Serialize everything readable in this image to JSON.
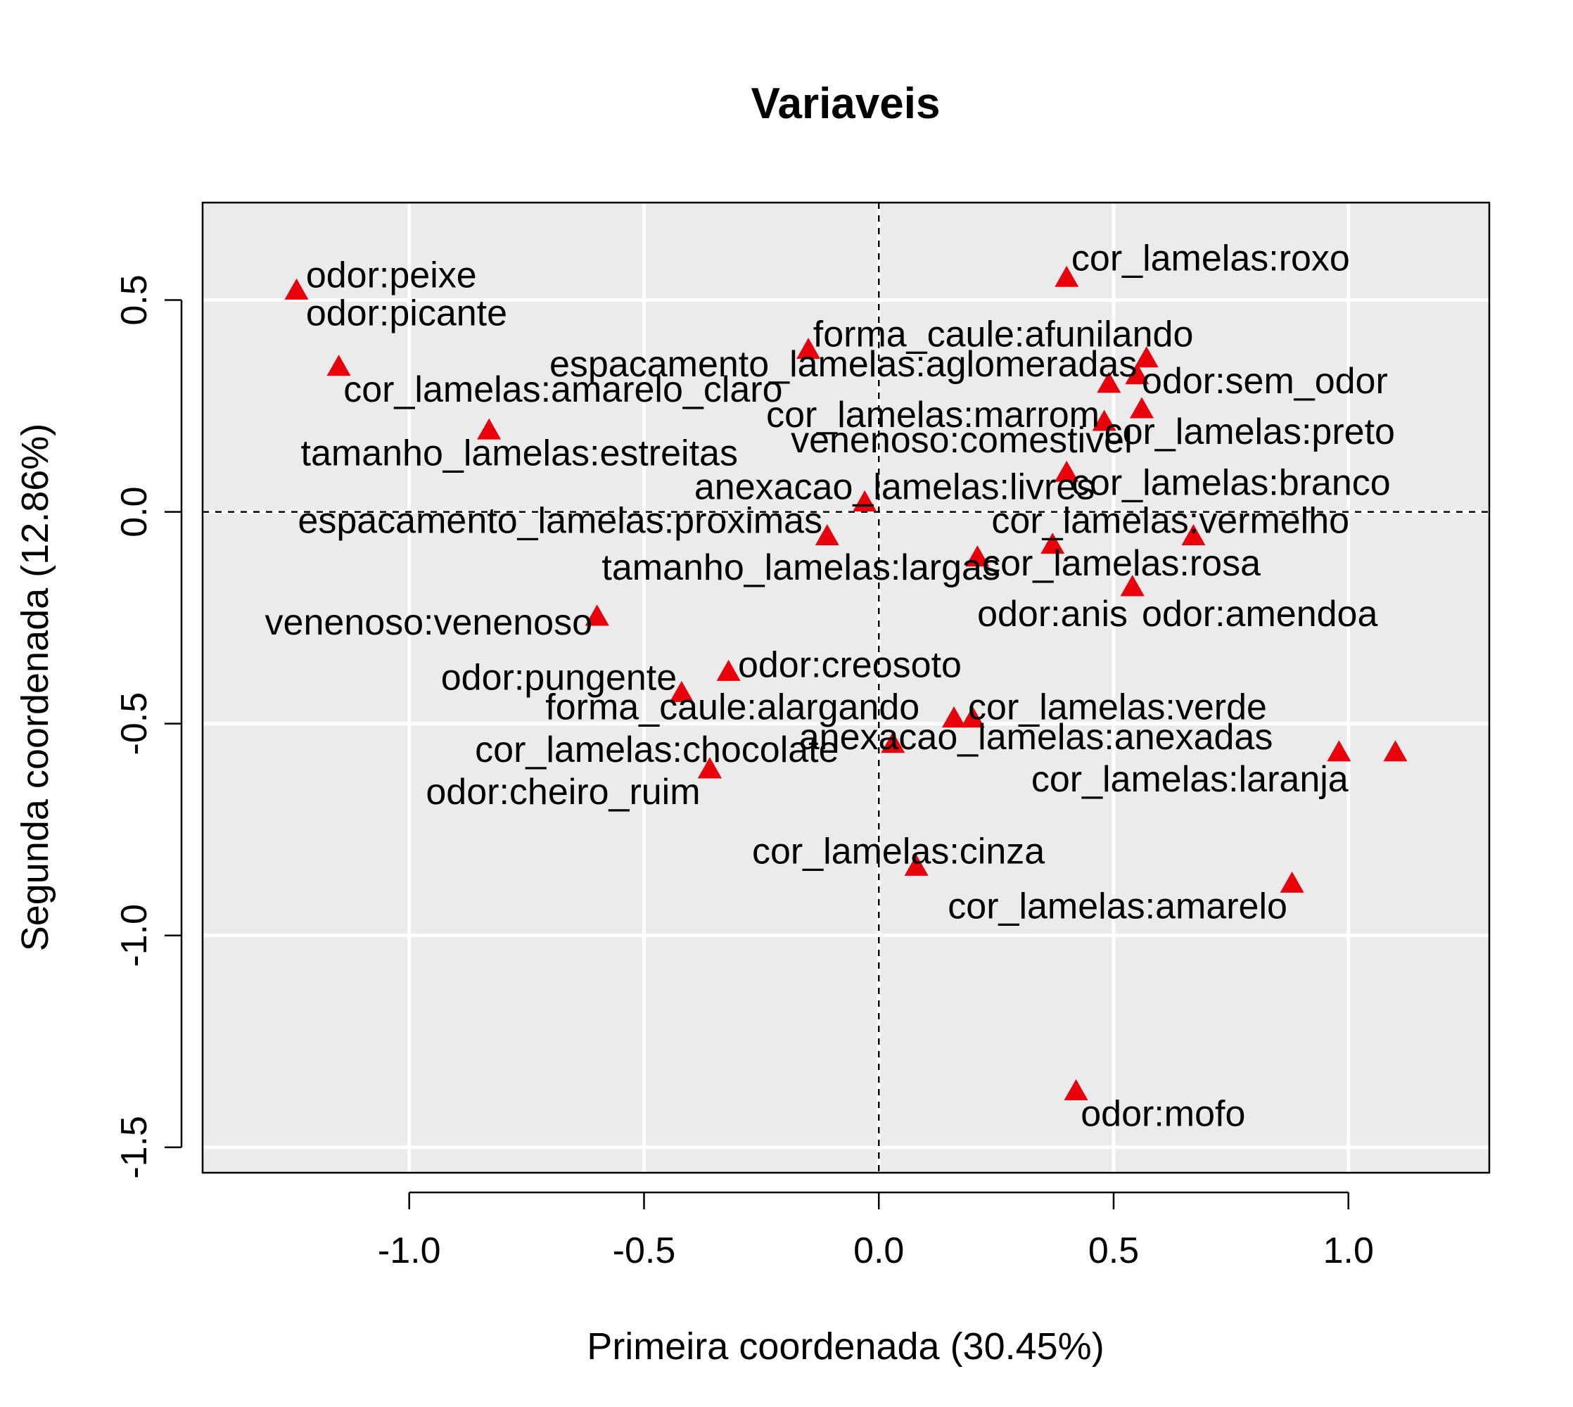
{
  "chart_data": {
    "type": "scatter",
    "title": "Variaveis",
    "xlabel": "Primeira coordenada (30.45%)",
    "ylabel": "Segunda coordenada (12.86%)",
    "xlim": [
      -1.44,
      1.3
    ],
    "ylim": [
      -1.56,
      0.73
    ],
    "xticks": [
      -1.0,
      -0.5,
      0.0,
      0.5,
      1.0
    ],
    "xtick_labels": [
      "-1.0",
      "-0.5",
      "0.0",
      "0.5",
      "1.0"
    ],
    "yticks": [
      -1.5,
      -1.0,
      -0.5,
      0.0,
      0.5
    ],
    "ytick_labels": [
      "-1.5",
      "-1.0",
      "-0.5",
      "0.0",
      "0.5"
    ],
    "grid": true,
    "reference_lines": {
      "x": 0,
      "y": 0
    },
    "marker": "triangle",
    "marker_color": "#e8000b",
    "panel_color": "#ebebeb",
    "points": [
      {
        "label": "odor:peixe",
        "x": -1.24,
        "y": 0.52,
        "label_x": -1.22,
        "label_y": 0.56,
        "anchor": "start"
      },
      {
        "label": "odor:picante",
        "x": -1.15,
        "y": 0.34,
        "label_x": -1.22,
        "label_y": 0.47,
        "anchor": "start"
      },
      {
        "label": "cor_lamelas:amarelo_claro",
        "x": -0.83,
        "y": 0.19,
        "label_x": -1.14,
        "label_y": 0.29,
        "anchor": "start"
      },
      {
        "label": "tamanho_lamelas:estreitas",
        "x": -0.6,
        "y": -0.25,
        "label_x": -0.3,
        "label_y": 0.14,
        "anchor": "end"
      },
      {
        "label": "espacamento_lamelas:aglomeradas",
        "x": -0.15,
        "y": 0.38,
        "label_x": 0.55,
        "label_y": 0.35,
        "anchor": "end"
      },
      {
        "label": "forma_caule:afunilando",
        "x": 0.57,
        "y": 0.36,
        "label_x": -0.14,
        "label_y": 0.42,
        "anchor": "start"
      },
      {
        "label": "cor_lamelas:roxo",
        "x": 0.4,
        "y": 0.55,
        "label_x": 0.41,
        "label_y": 0.6,
        "anchor": "start"
      },
      {
        "label": "odor:sem_odor",
        "x": 0.55,
        "y": 0.32,
        "label_x": 0.56,
        "label_y": 0.31,
        "anchor": "start"
      },
      {
        "label": "cor_lamelas:marrom",
        "x": 0.49,
        "y": 0.3,
        "label_x": 0.47,
        "label_y": 0.23,
        "anchor": "end"
      },
      {
        "label": "cor_lamelas:preto",
        "x": 0.56,
        "y": 0.24,
        "label_x": 0.48,
        "label_y": 0.19,
        "anchor": "start"
      },
      {
        "label": "venenoso:comestivel",
        "x": 0.48,
        "y": 0.21,
        "label_x": 0.54,
        "label_y": 0.17,
        "anchor": "end"
      },
      {
        "label": "cor_lamelas:branco",
        "x": 0.4,
        "y": 0.09,
        "label_x": 0.41,
        "label_y": 0.07,
        "anchor": "start"
      },
      {
        "label": "anexacao_lamelas:livres",
        "x": -0.03,
        "y": 0.02,
        "label_x": 0.46,
        "label_y": 0.06,
        "anchor": "end"
      },
      {
        "label": "espacamento_lamelas:proximas",
        "x": -0.11,
        "y": -0.06,
        "label_x": -0.12,
        "label_y": -0.02,
        "anchor": "end"
      },
      {
        "label": "cor_lamelas:vermelho",
        "x": 0.67,
        "y": -0.06,
        "label_x": 0.24,
        "label_y": -0.02,
        "anchor": "start"
      },
      {
        "label": "cor_lamelas:rosa",
        "x": 0.37,
        "y": -0.08,
        "label_x": 0.22,
        "label_y": -0.12,
        "anchor": "start"
      },
      {
        "label": "tamanho_lamelas:largas",
        "x": 0.21,
        "y": -0.11,
        "label_x": -0.59,
        "label_y": -0.13,
        "anchor": "start"
      },
      {
        "label": "odor:amendoa",
        "x": 0.54,
        "y": -0.18,
        "label_x": 0.56,
        "label_y": -0.24,
        "anchor": "start"
      },
      {
        "label": "odor:anis",
        "x": 0.54,
        "y": -0.18,
        "label_x": 0.53,
        "label_y": -0.24,
        "anchor": "end"
      },
      {
        "label": "venenoso:venenoso",
        "x": -0.6,
        "y": -0.25,
        "label_x": -0.61,
        "label_y": -0.26,
        "anchor": "end"
      },
      {
        "label": "odor:creosoto",
        "x": -0.32,
        "y": -0.38,
        "label_x": -0.3,
        "label_y": -0.36,
        "anchor": "start"
      },
      {
        "label": "odor:pungente",
        "x": -0.42,
        "y": -0.43,
        "label_x": -0.43,
        "label_y": -0.39,
        "anchor": "end"
      },
      {
        "label": "forma_caule:alargando",
        "x": 0.16,
        "y": -0.49,
        "label_x": -0.71,
        "label_y": -0.46,
        "anchor": "start"
      },
      {
        "label": "cor_lamelas:verde",
        "x": 0.2,
        "y": -0.49,
        "label_x": 0.19,
        "label_y": -0.46,
        "anchor": "start"
      },
      {
        "label": "anexacao_lamelas:anexadas",
        "x": 0.03,
        "y": -0.55,
        "label_x": -0.17,
        "label_y": -0.53,
        "anchor": "start"
      },
      {
        "label": "cor_lamelas:chocolate",
        "x": -0.36,
        "y": -0.61,
        "label_x": -0.86,
        "label_y": -0.56,
        "anchor": "start"
      },
      {
        "label": "cor_lamelas:laranja",
        "x": 0.98,
        "y": -0.57,
        "label_x": 1.0,
        "label_y": -0.63,
        "anchor": "end"
      },
      {
        "label": "",
        "x": 1.1,
        "y": -0.57
      },
      {
        "label": "odor:cheiro_ruim",
        "x": -0.36,
        "y": -0.61,
        "label_x": -0.38,
        "label_y": -0.66,
        "anchor": "end"
      },
      {
        "label": "cor_lamelas:cinza",
        "x": 0.08,
        "y": -0.84,
        "label_x": -0.27,
        "label_y": -0.8,
        "anchor": "start"
      },
      {
        "label": "cor_lamelas:amarelo",
        "x": 0.88,
        "y": -0.88,
        "label_x": 0.87,
        "label_y": -0.93,
        "anchor": "end"
      },
      {
        "label": "odor:mofo",
        "x": 0.42,
        "y": -1.37,
        "label_x": 0.43,
        "label_y": -1.42,
        "anchor": "start"
      }
    ]
  }
}
